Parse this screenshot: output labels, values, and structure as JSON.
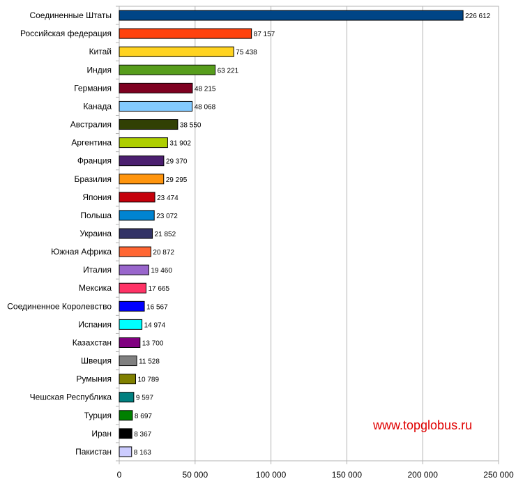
{
  "watermark": "www.topglobus.ru",
  "chart_data": {
    "type": "bar",
    "orientation": "horizontal",
    "categories": [
      "Соединенные Штаты",
      "Российская федерация",
      "Китай",
      "Индия",
      "Германия",
      "Канада",
      "Австралия",
      "Аргентина",
      "Франция",
      "Бразилия",
      "Япония",
      "Польша",
      "Украина",
      "Южная Африка",
      "Италия",
      "Мексика",
      "Соединенное Королевство",
      "Испания",
      "Казахстан",
      "Швеция",
      "Румыния",
      "Чешская Республика",
      "Турция",
      "Иран",
      "Пакистан"
    ],
    "values": [
      226612,
      87157,
      75438,
      63221,
      48215,
      48068,
      38550,
      31902,
      29370,
      29295,
      23474,
      23072,
      21852,
      20872,
      19460,
      17665,
      16567,
      14974,
      13700,
      11528,
      10789,
      9597,
      8697,
      8367,
      8163
    ],
    "value_labels": [
      "226 612",
      "87 157",
      "75 438",
      "63 221",
      "48 215",
      "48 068",
      "38 550",
      "31 902",
      "29 370",
      "29 295",
      "23 474",
      "23 072",
      "21 852",
      "20 872",
      "19 460",
      "17 665",
      "16 567",
      "14 974",
      "13 700",
      "11 528",
      "10 789",
      "9 597",
      "8 697",
      "8 367",
      "8 163"
    ],
    "colors": [
      "#004586",
      "#ff420e",
      "#ffd320",
      "#579d1c",
      "#7e0021",
      "#83caff",
      "#314004",
      "#aecf00",
      "#4b1f6f",
      "#ff950e",
      "#c5000b",
      "#0084d1",
      "#333366",
      "#ff6633",
      "#9966cc",
      "#ff3366",
      "#0000ff",
      "#00ffff",
      "#800080",
      "#808080",
      "#808000",
      "#008080",
      "#008000",
      "#000000",
      "#ccccff"
    ],
    "xticks": [
      "0",
      "50 000",
      "100 000",
      "150 000",
      "200 000",
      "250 000"
    ],
    "xlim": [
      0,
      250000
    ],
    "grid": true
  }
}
